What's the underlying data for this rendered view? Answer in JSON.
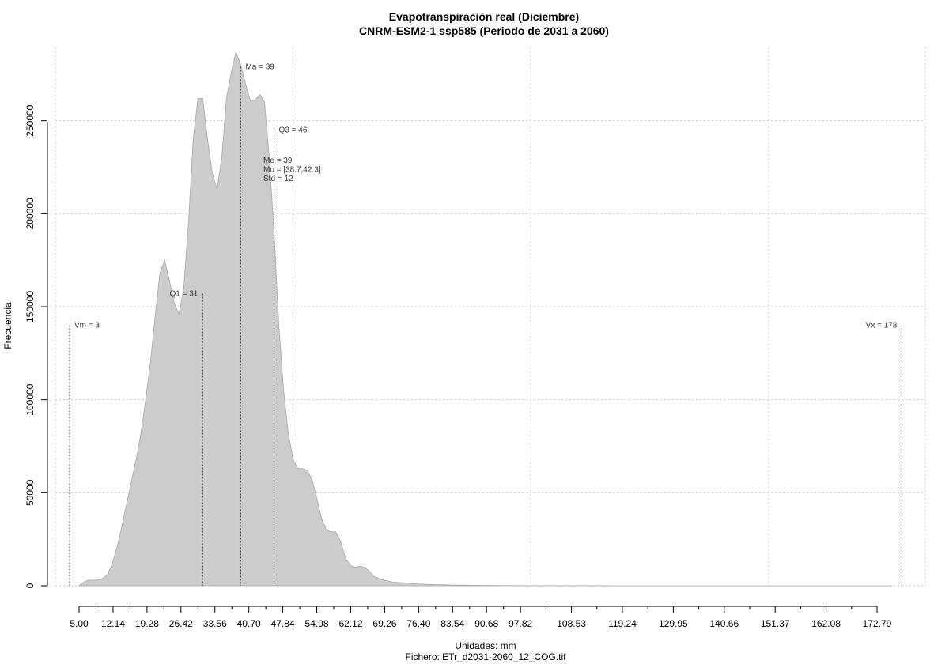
{
  "chart_data": {
    "type": "area",
    "title": "Evapotranspiración real (Diciembre)",
    "subtitle": "CNRM-ESM2-1 ssp585 (Periodo de 2031 a 2060)",
    "xlabel": "Unidades: mm",
    "ylabel": "Frecuencia",
    "footer": "Fichero: ETr_d2031-2060_12_COG.tif",
    "xlim": [
      0,
      178
    ],
    "ylim": [
      0,
      290000
    ],
    "x_ticks": [
      5.0,
      12.14,
      19.28,
      26.42,
      33.56,
      40.7,
      47.84,
      54.98,
      62.12,
      69.26,
      76.4,
      83.54,
      90.68,
      97.82,
      108.53,
      119.24,
      129.95,
      140.66,
      151.37,
      162.08,
      172.79
    ],
    "x_tick_labels": [
      "5.00",
      "12.14",
      "19.28",
      "26.42",
      "33.56",
      "40.70",
      "47.84",
      "54.98",
      "62.12",
      "69.26",
      "76.40",
      "83.54",
      "90.68",
      "97.82",
      "108.53",
      "119.24",
      "129.95",
      "140.66",
      "151.37",
      "162.08",
      "172.79"
    ],
    "y_ticks": [
      0,
      50000,
      100000,
      150000,
      200000,
      250000
    ],
    "y_tick_labels": [
      "0",
      "50000",
      "100000",
      "150000",
      "200000",
      "250000"
    ],
    "grid": true,
    "fill_color": "#cccccc",
    "series": [
      {
        "x": [
          5,
          6,
          7,
          8,
          9,
          10,
          11,
          12,
          13,
          14,
          15,
          16,
          17,
          18,
          19,
          20,
          21,
          22,
          23,
          24,
          25,
          26,
          27,
          28,
          29,
          30,
          31,
          32,
          33,
          34,
          35,
          36,
          37,
          38,
          39,
          40,
          41,
          42,
          43,
          44,
          45,
          46,
          47,
          48,
          49,
          50,
          51,
          52,
          53,
          54,
          55,
          56,
          57,
          58,
          59,
          60,
          61,
          62,
          63,
          64,
          65,
          66,
          67,
          68,
          69,
          70,
          71,
          72,
          73,
          74,
          75,
          76,
          78,
          80,
          82,
          84,
          86,
          88,
          90,
          92,
          95,
          100,
          110,
          120,
          130,
          140,
          150,
          160,
          170,
          176
        ],
        "y": [
          0,
          2000,
          3000,
          3000,
          3200,
          4000,
          6000,
          12000,
          21000,
          32000,
          44000,
          56000,
          68000,
          82000,
          100000,
          120000,
          145000,
          168000,
          175000,
          164000,
          152000,
          146000,
          160000,
          195000,
          240000,
          262000,
          262000,
          240000,
          222000,
          213000,
          230000,
          262000,
          276000,
          287000,
          280000,
          270000,
          261000,
          261000,
          264000,
          260000,
          230000,
          190000,
          140000,
          105000,
          82000,
          68000,
          63000,
          63000,
          62000,
          57000,
          47000,
          36000,
          30000,
          29000,
          29000,
          24000,
          15000,
          11000,
          10000,
          10500,
          10000,
          8000,
          5000,
          4000,
          3000,
          2500,
          2000,
          1800,
          1600,
          1400,
          1200,
          1000,
          800,
          600,
          500,
          400,
          300,
          250,
          200,
          150,
          100,
          60,
          30,
          20,
          10,
          5,
          3,
          2,
          1,
          0
        ]
      }
    ],
    "vlines": [
      {
        "x": 3,
        "y": 140000,
        "label": "Vm = 3",
        "label_pos": "right"
      },
      {
        "x": 31,
        "y": 157000,
        "label": "Q1 = 31",
        "label_pos": "left"
      },
      {
        "x": 39,
        "y": 279000,
        "label": "Ma = 39",
        "label_pos": "right"
      },
      {
        "x": 46,
        "y": 245000,
        "label": "Q3 = 46",
        "label_pos": "right"
      },
      {
        "x": 178,
        "y": 140000,
        "label": "Vx = 178",
        "label_pos": "left"
      }
    ],
    "stats_text": [
      "Me = 39",
      "Mo = [38.7,42.3]",
      "Std = 12"
    ]
  }
}
